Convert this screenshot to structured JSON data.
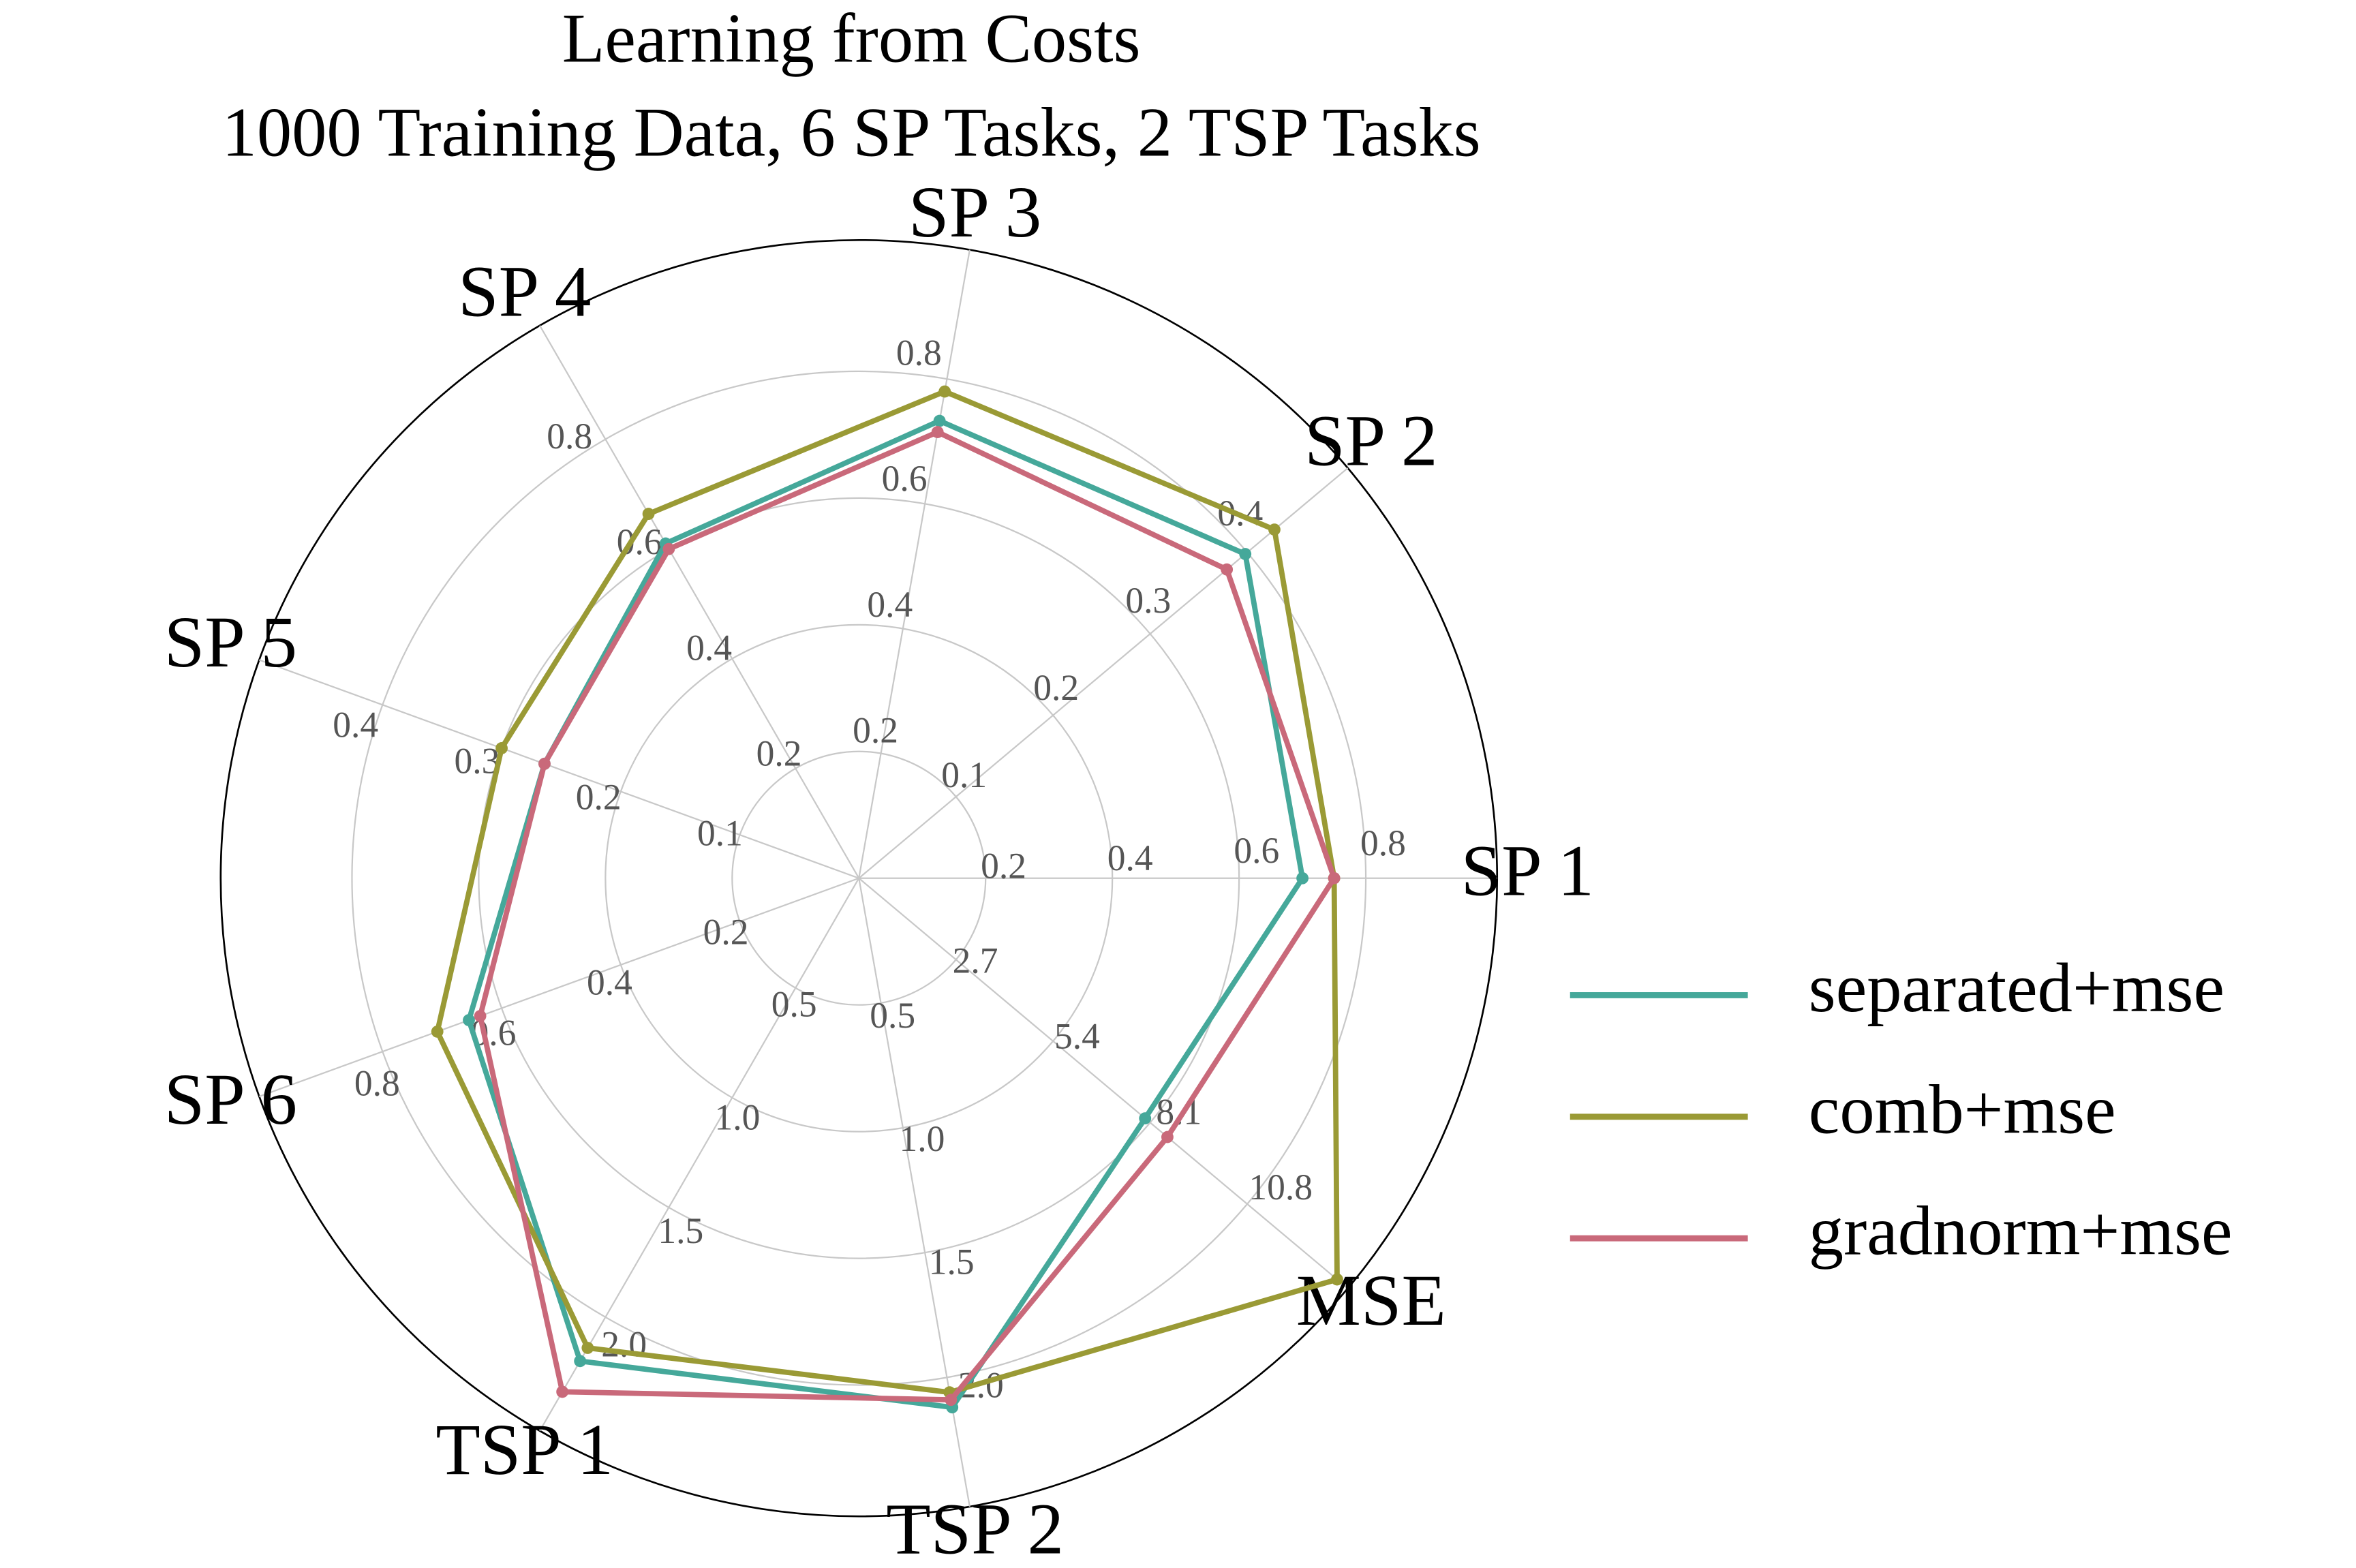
{
  "chart_data": {
    "type": "radar",
    "title": "Learning from Costs",
    "subtitle": "1000 Training Data, 6 SP Tasks, 2 TSP Tasks",
    "axes": [
      {
        "name": "SP 1",
        "lim": [
          0,
          1
        ],
        "ticks": [
          0.2,
          0.4,
          0.6,
          0.8
        ]
      },
      {
        "name": "SP 2",
        "lim": [
          0,
          0.5
        ],
        "ticks": [
          0.1,
          0.2,
          0.3,
          0.4
        ]
      },
      {
        "name": "SP 3",
        "lim": [
          0,
          1
        ],
        "ticks": [
          0.2,
          0.4,
          0.6,
          0.8
        ]
      },
      {
        "name": "SP 4",
        "lim": [
          0,
          1
        ],
        "ticks": [
          0.2,
          0.4,
          0.6,
          0.8
        ]
      },
      {
        "name": "SP 5",
        "lim": [
          0,
          0.5
        ],
        "ticks": [
          0.1,
          0.2,
          0.3,
          0.4
        ]
      },
      {
        "name": "SP 6",
        "lim": [
          0,
          1
        ],
        "ticks": [
          0.2,
          0.4,
          0.6,
          0.8
        ]
      },
      {
        "name": "TSP 1",
        "lim": [
          0,
          2.5
        ],
        "ticks": [
          0.5,
          {
            "value": 1,
            "label": "1.0"
          },
          1.5,
          {
            "value": 2,
            "label": "2.0"
          }
        ]
      },
      {
        "name": "TSP 2",
        "lim": [
          0,
          2.5
        ],
        "ticks": [
          0.5,
          {
            "value": 1,
            "label": "1.0"
          },
          1.5,
          {
            "value": 2,
            "label": "2.0"
          }
        ]
      },
      {
        "name": "MSE",
        "lim": [
          0,
          13.5
        ],
        "ticks": [
          2.7,
          5.4,
          8.1,
          10.8
        ]
      }
    ],
    "series": [
      {
        "name": "separated+mse",
        "color": "#45a89a",
        "values": [
          0.7,
          0.398,
          0.733,
          0.61,
          0.264,
          0.655,
          2.2,
          2.12,
          7.96
        ]
      },
      {
        "name": "comb+mse",
        "color": "#9a9a35",
        "values": [
          0.75,
          0.428,
          0.78,
          0.664,
          0.3,
          0.708,
          2.14,
          2.06,
          13.3
        ]
      },
      {
        "name": "gradnorm+mse",
        "color": "#c9697a",
        "values": [
          0.75,
          0.379,
          0.715,
          0.6,
          0.264,
          0.636,
          2.34,
          2.09,
          8.58
        ]
      }
    ],
    "grid": true,
    "legend": "right"
  }
}
